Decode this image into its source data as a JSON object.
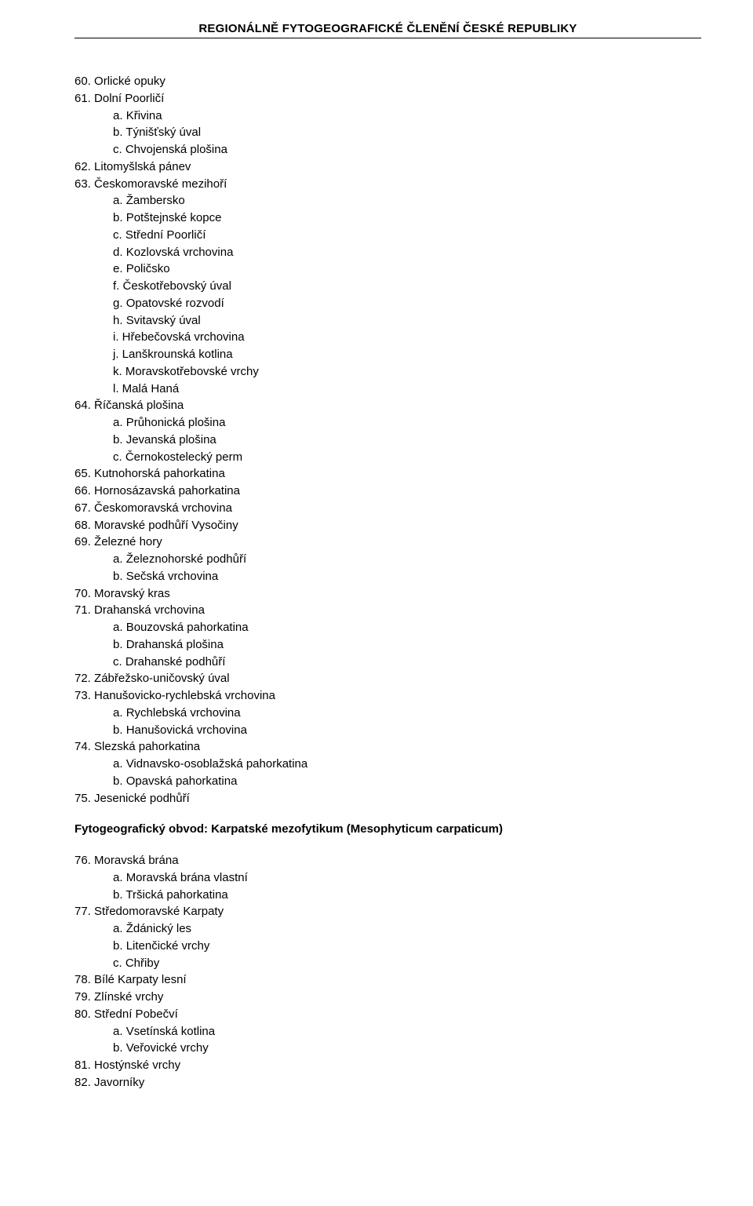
{
  "header": "REGIONÁLNĚ FYTOGEOGRAFICKÉ ČLENĚNÍ ČESKÉ REPUBLIKY",
  "items": [
    {
      "type": "top",
      "num": "60.",
      "text": "Orlické opuky"
    },
    {
      "type": "top",
      "num": "61.",
      "text": "Dolní Poorličí"
    },
    {
      "type": "sub",
      "letter": "a.",
      "text": "Křivina"
    },
    {
      "type": "sub",
      "letter": "b.",
      "text": "Týnišťský úval"
    },
    {
      "type": "sub",
      "letter": "c.",
      "text": "Chvojenská plošina"
    },
    {
      "type": "top",
      "num": "62.",
      "text": "Litomyšlská pánev"
    },
    {
      "type": "top",
      "num": "63.",
      "text": "Českomoravské mezihoří"
    },
    {
      "type": "sub",
      "letter": "a.",
      "text": "Žambersko"
    },
    {
      "type": "sub",
      "letter": "b.",
      "text": "Potštejnské kopce"
    },
    {
      "type": "sub",
      "letter": "c.",
      "text": "Střední Poorličí"
    },
    {
      "type": "sub",
      "letter": "d.",
      "text": "Kozlovská vrchovina"
    },
    {
      "type": "sub",
      "letter": "e.",
      "text": "Poličsko"
    },
    {
      "type": "sub",
      "letter": "f.",
      "text": "Českotřebovský úval"
    },
    {
      "type": "sub",
      "letter": "g.",
      "text": "Opatovské rozvodí"
    },
    {
      "type": "sub",
      "letter": "h.",
      "text": "Svitavský úval"
    },
    {
      "type": "sub",
      "letter": "i.",
      "text": "Hřebečovská vrchovina"
    },
    {
      "type": "sub",
      "letter": "j.",
      "text": "Lanškrounská kotlina"
    },
    {
      "type": "sub",
      "letter": "k.",
      "text": "Moravskotřebovské vrchy"
    },
    {
      "type": "sub",
      "letter": "l.",
      "text": "Malá Haná"
    },
    {
      "type": "top",
      "num": "64.",
      "text": "Říčanská plošina"
    },
    {
      "type": "sub",
      "letter": "a.",
      "text": "Průhonická plošina"
    },
    {
      "type": "sub",
      "letter": "b.",
      "text": "Jevanská plošina"
    },
    {
      "type": "sub",
      "letter": "c.",
      "text": "Černokostelecký perm"
    },
    {
      "type": "top",
      "num": "65.",
      "text": "Kutnohorská pahorkatina"
    },
    {
      "type": "top",
      "num": "66.",
      "text": "Hornosázavská pahorkatina"
    },
    {
      "type": "top",
      "num": "67.",
      "text": "Českomoravská vrchovina"
    },
    {
      "type": "top",
      "num": "68.",
      "text": "Moravské podhůří Vysočiny"
    },
    {
      "type": "top",
      "num": "69.",
      "text": "Železné hory"
    },
    {
      "type": "sub",
      "letter": "a.",
      "text": "Železnohorské podhůří"
    },
    {
      "type": "sub",
      "letter": "b.",
      "text": "Sečská vrchovina"
    },
    {
      "type": "top",
      "num": "70.",
      "text": "Moravský kras"
    },
    {
      "type": "top",
      "num": "71.",
      "text": "Drahanská vrchovina"
    },
    {
      "type": "sub",
      "letter": "a.",
      "text": "Bouzovská pahorkatina"
    },
    {
      "type": "sub",
      "letter": "b.",
      "text": "Drahanská plošina"
    },
    {
      "type": "sub",
      "letter": "c.",
      "text": "Drahanské podhůří"
    },
    {
      "type": "top",
      "num": "72.",
      "text": "Zábřežsko-uničovský úval"
    },
    {
      "type": "top",
      "num": "73.",
      "text": "Hanušovicko-rychlebská vrchovina"
    },
    {
      "type": "sub",
      "letter": "a.",
      "text": "Rychlebská vrchovina"
    },
    {
      "type": "sub",
      "letter": "b.",
      "text": "Hanušovická vrchovina"
    },
    {
      "type": "top",
      "num": "74.",
      "text": "Slezská pahorkatina"
    },
    {
      "type": "sub",
      "letter": "a.",
      "text": "Vidnavsko-osoblažská pahorkatina"
    },
    {
      "type": "sub",
      "letter": "b.",
      "text": "Opavská pahorkatina"
    },
    {
      "type": "top",
      "num": "75.",
      "text": "Jesenické podhůří"
    },
    {
      "type": "heading",
      "text": "Fytogeografický obvod: Karpatské mezofytikum (Mesophyticum carpaticum)"
    },
    {
      "type": "top",
      "num": "76.",
      "text": "Moravská brána"
    },
    {
      "type": "sub",
      "letter": "a.",
      "text": "Moravská brána vlastní"
    },
    {
      "type": "sub",
      "letter": "b.",
      "text": "Tršická pahorkatina"
    },
    {
      "type": "top",
      "num": "77.",
      "text": "Středomoravské Karpaty"
    },
    {
      "type": "sub",
      "letter": "a.",
      "text": "Ždánický les"
    },
    {
      "type": "sub",
      "letter": "b.",
      "text": "Litenčické vrchy"
    },
    {
      "type": "sub",
      "letter": "c.",
      "text": "Chřiby"
    },
    {
      "type": "top",
      "num": "78.",
      "text": "Bílé Karpaty lesní"
    },
    {
      "type": "top",
      "num": "79.",
      "text": "Zlínské vrchy"
    },
    {
      "type": "top",
      "num": "80.",
      "text": "Střední Pobečví"
    },
    {
      "type": "sub",
      "letter": "a.",
      "text": "Vsetínská kotlina"
    },
    {
      "type": "sub",
      "letter": "b.",
      "text": "Veřovické vrchy"
    },
    {
      "type": "top",
      "num": "81.",
      "text": "Hostýnské vrchy"
    },
    {
      "type": "top",
      "num": "82.",
      "text": "Javorníky"
    }
  ]
}
